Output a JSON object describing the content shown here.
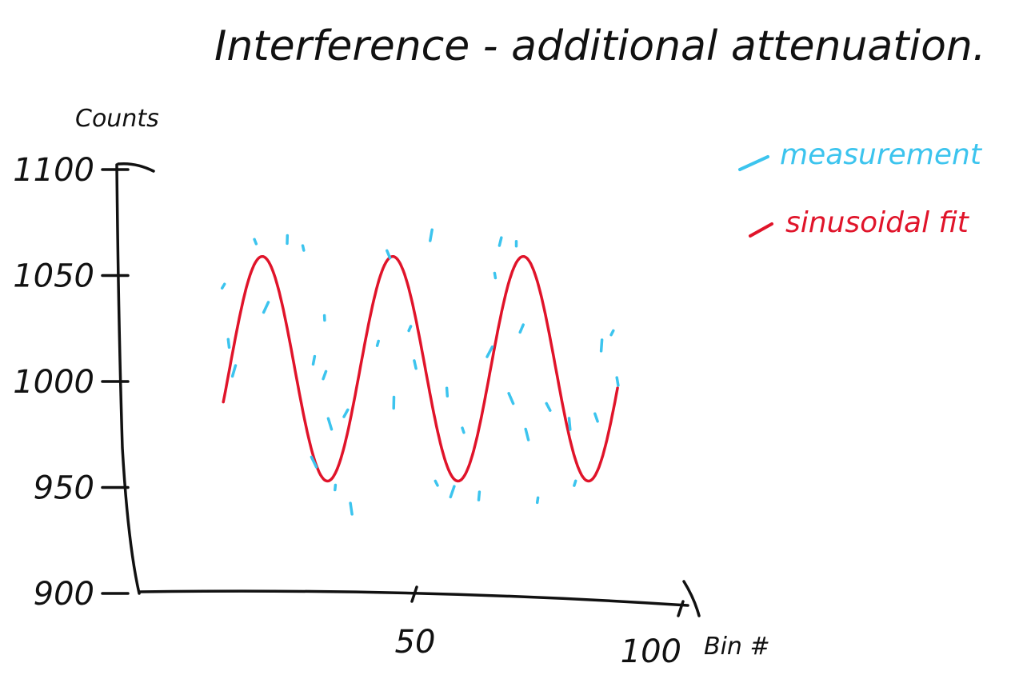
{
  "chart_data": {
    "type": "scatter",
    "title": "Interference - additional attenuation.",
    "xlabel": "Bin #",
    "ylabel": "Counts",
    "xlim": [
      0,
      100
    ],
    "ylim": [
      900,
      1100
    ],
    "yticks": [
      {
        "value": 1100,
        "label": "1100"
      },
      {
        "value": 1050,
        "label": "1050"
      },
      {
        "value": 1000,
        "label": "1000"
      },
      {
        "value": 950,
        "label": "950"
      },
      {
        "value": 900,
        "label": "900"
      }
    ],
    "xticks": [
      {
        "value": 50,
        "label": "50"
      },
      {
        "value": 100,
        "label": "100"
      }
    ],
    "grid": false,
    "legend_position": "top-right",
    "series": [
      {
        "name": "measurement",
        "kind": "scatter",
        "color": "#3cc4ee",
        "points": [
          [
            14,
            1045
          ],
          [
            15,
            1018
          ],
          [
            16,
            1005
          ],
          [
            20,
            1066
          ],
          [
            26,
            1067
          ],
          [
            22,
            1035
          ],
          [
            29,
            1063
          ],
          [
            31,
            1010
          ],
          [
            31,
            962
          ],
          [
            33,
            1030
          ],
          [
            33,
            1003
          ],
          [
            34,
            980
          ],
          [
            35,
            950
          ],
          [
            37,
            985
          ],
          [
            38,
            940
          ],
          [
            43,
            1018
          ],
          [
            45,
            1060
          ],
          [
            46,
            990
          ],
          [
            49,
            1025
          ],
          [
            50,
            1008
          ],
          [
            53,
            1069
          ],
          [
            54,
            952
          ],
          [
            56,
            995
          ],
          [
            57,
            948
          ],
          [
            59,
            977
          ],
          [
            62,
            946
          ],
          [
            64,
            1014
          ],
          [
            65,
            1050
          ],
          [
            66,
            1066
          ],
          [
            68,
            992
          ],
          [
            69,
            1065
          ],
          [
            70,
            1025
          ],
          [
            71,
            975
          ],
          [
            73,
            944
          ],
          [
            75,
            988
          ],
          [
            79,
            980
          ],
          [
            80,
            952
          ],
          [
            84,
            983
          ],
          [
            85,
            1017
          ],
          [
            87,
            1023
          ],
          [
            88,
            1000
          ]
        ]
      },
      {
        "name": "sinusoidal fit",
        "kind": "line",
        "color": "#e0142a",
        "amplitude": 53,
        "offset": 1006,
        "period": 24.5,
        "phase_bin": 14,
        "x_start": 14,
        "x_end": 88
      }
    ]
  }
}
